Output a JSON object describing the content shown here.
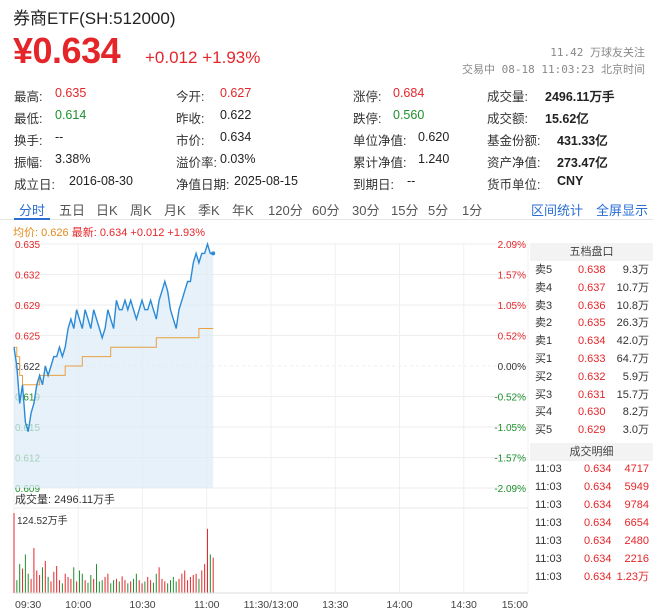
{
  "header": {
    "title": "券商ETF(SH:512000)",
    "price": "¥0.634",
    "change": "+0.012",
    "change_pct": "+1.93%",
    "follows": "11.42 万球友关注",
    "trade_time": "交易中 08-18 11:03:23 北京时间"
  },
  "stats": [
    [
      {
        "label": "最高:",
        "value": "0.635",
        "color": "up"
      },
      {
        "label": "今开:",
        "value": "0.627",
        "color": "up"
      },
      {
        "label": "涨停:",
        "value": "0.684",
        "color": "up"
      },
      {
        "label": "成交量:",
        "value": "2496.11万手",
        "color": "bold"
      }
    ],
    [
      {
        "label": "最低:",
        "value": "0.614",
        "color": "down"
      },
      {
        "label": "昨收:",
        "value": "0.622",
        "color": "flat"
      },
      {
        "label": "跌停:",
        "value": "0.560",
        "color": "down"
      },
      {
        "label": "成交额:",
        "value": "15.62亿",
        "color": "bold"
      }
    ],
    [
      {
        "label": "换手:",
        "value": "--",
        "color": "flat"
      },
      {
        "label": "市价:",
        "value": "0.634",
        "color": "flat"
      },
      {
        "label": "单位净值:",
        "value": "0.620",
        "color": "flat"
      },
      {
        "label": "基金份额:",
        "value": "431.33亿",
        "color": "bold"
      }
    ],
    [
      {
        "label": "振幅:",
        "value": "3.38%",
        "color": "flat"
      },
      {
        "label": "溢价率:",
        "value": "0.03%",
        "color": "flat"
      },
      {
        "label": "累计净值:",
        "value": "1.240",
        "color": "flat"
      },
      {
        "label": "资产净值:",
        "value": "273.47亿",
        "color": "bold"
      }
    ],
    [
      {
        "label": "成立日:",
        "value": "2016-08-30",
        "color": "flat"
      },
      {
        "label": "净值日期:",
        "value": "2025-08-15",
        "color": "flat"
      },
      {
        "label": "到期日:",
        "value": "--",
        "color": "flat"
      },
      {
        "label": "货币单位:",
        "value": "CNY",
        "color": "bold"
      }
    ]
  ],
  "tabs": [
    "分时",
    "五日",
    "日K",
    "周K",
    "月K",
    "季K",
    "年K",
    "120分",
    "60分",
    "30分",
    "15分",
    "5分",
    "1分"
  ],
  "active_tab": 0,
  "right_links": [
    "区间统计",
    "全屏显示"
  ],
  "legend": {
    "avg": "均价: 0.626",
    "latest": "最新: 0.634 +0.012 +1.93%"
  },
  "chart_data": {
    "type": "line",
    "x_ticks": [
      "09:30",
      "10:00",
      "10:30",
      "11:00",
      "11:30/13:00",
      "13:30",
      "14:00",
      "14:30",
      "15:00"
    ],
    "y_ticks": [
      "0.635",
      "0.632",
      "0.629",
      "0.625",
      "0.622",
      "0.619",
      "0.615",
      "0.612",
      "0.609"
    ],
    "pct_ticks": [
      "2.09%",
      "1.57%",
      "1.05%",
      "0.52%",
      "0.00%",
      "-0.52%",
      "-1.05%",
      "-1.57%",
      "-2.09%"
    ],
    "ylim": [
      0.609,
      0.635
    ],
    "prev_close": 0.622,
    "series": [
      {
        "values": [
          0.624,
          0.622,
          0.618,
          0.62,
          0.616,
          0.615,
          0.617,
          0.618,
          0.62,
          0.621,
          0.62,
          0.622,
          0.621,
          0.622,
          0.623,
          0.623,
          0.624,
          0.623,
          0.624,
          0.626,
          0.627,
          0.626,
          0.628,
          0.627,
          0.626,
          0.628,
          0.627,
          0.626,
          0.628,
          0.627,
          0.626,
          0.625,
          0.626,
          0.628,
          0.627,
          0.626,
          0.629,
          0.628,
          0.628,
          0.629,
          0.628,
          0.629,
          0.628,
          0.627,
          0.628,
          0.629,
          0.628,
          0.628,
          0.629,
          0.628,
          0.627,
          0.629,
          0.63,
          0.631,
          0.63,
          0.628,
          0.627,
          0.626,
          0.628,
          0.629,
          0.63,
          0.631,
          0.631,
          0.633,
          0.634,
          0.633,
          0.634,
          0.634,
          0.635,
          0.634,
          0.634
        ]
      },
      {
        "values": [
          0.624,
          0.623,
          0.621,
          0.62,
          0.62,
          0.62,
          0.62,
          0.62,
          0.62,
          0.621,
          0.621,
          0.621,
          0.621,
          0.621,
          0.621,
          0.621,
          0.621,
          0.621,
          0.622,
          0.622,
          0.622,
          0.622,
          0.622,
          0.622,
          0.623,
          0.623,
          0.623,
          0.623,
          0.623,
          0.623,
          0.623,
          0.623,
          0.623,
          0.623,
          0.624,
          0.624,
          0.624,
          0.624,
          0.624,
          0.624,
          0.624,
          0.624,
          0.624,
          0.624,
          0.624,
          0.624,
          0.624,
          0.624,
          0.624,
          0.624,
          0.625,
          0.625,
          0.625,
          0.625,
          0.625,
          0.625,
          0.625,
          0.625,
          0.625,
          0.625,
          0.625,
          0.625,
          0.625,
          0.625,
          0.625,
          0.626,
          0.626,
          0.626,
          0.626,
          0.626,
          0.626
        ]
      }
    ],
    "volume": {
      "label": "成交量: 2496.11万手",
      "max_label": "124.52万手",
      "max": 124.52,
      "values": [
        124.5,
        20,
        45,
        38,
        60,
        30,
        22,
        70,
        35,
        28,
        40,
        50,
        25,
        18,
        33,
        42,
        20,
        15,
        30,
        25,
        22,
        40,
        18,
        35,
        30,
        20,
        16,
        28,
        22,
        45,
        18,
        20,
        25,
        30,
        15,
        20,
        22,
        18,
        26,
        20,
        15,
        18,
        22,
        30,
        20,
        15,
        18,
        25,
        20,
        16,
        30,
        40,
        22,
        18,
        15,
        20,
        25,
        18,
        22,
        30,
        35,
        20,
        25,
        28,
        30,
        22,
        35,
        45,
        100,
        60,
        55
      ]
    }
  },
  "order_book": {
    "title": "五档盘口",
    "rows": [
      {
        "label": "卖5",
        "price": "0.638",
        "vol": "9.3万"
      },
      {
        "label": "卖4",
        "price": "0.637",
        "vol": "10.7万"
      },
      {
        "label": "卖3",
        "price": "0.636",
        "vol": "10.8万"
      },
      {
        "label": "卖2",
        "price": "0.635",
        "vol": "26.3万"
      },
      {
        "label": "卖1",
        "price": "0.634",
        "vol": "42.0万"
      },
      {
        "label": "买1",
        "price": "0.633",
        "vol": "64.7万"
      },
      {
        "label": "买2",
        "price": "0.632",
        "vol": "5.9万"
      },
      {
        "label": "买3",
        "price": "0.631",
        "vol": "15.7万"
      },
      {
        "label": "买4",
        "price": "0.630",
        "vol": "8.2万"
      },
      {
        "label": "买5",
        "price": "0.629",
        "vol": "3.0万"
      }
    ]
  },
  "trade_detail": {
    "title": "成交明细",
    "rows": [
      {
        "time": "11:03",
        "price": "0.634",
        "vol": "4717"
      },
      {
        "time": "11:03",
        "price": "0.634",
        "vol": "5949"
      },
      {
        "time": "11:03",
        "price": "0.634",
        "vol": "9784"
      },
      {
        "time": "11:03",
        "price": "0.634",
        "vol": "6654"
      },
      {
        "time": "11:03",
        "price": "0.634",
        "vol": "2480"
      },
      {
        "time": "11:03",
        "price": "0.634",
        "vol": "2216"
      },
      {
        "time": "11:03",
        "price": "0.634",
        "vol": "1.23万"
      }
    ]
  },
  "colors": {
    "up": "#e4262b",
    "down": "#1d8f2c",
    "line": "#2a8ad8",
    "avg": "#e8a040",
    "fill": "#dcebf8"
  }
}
